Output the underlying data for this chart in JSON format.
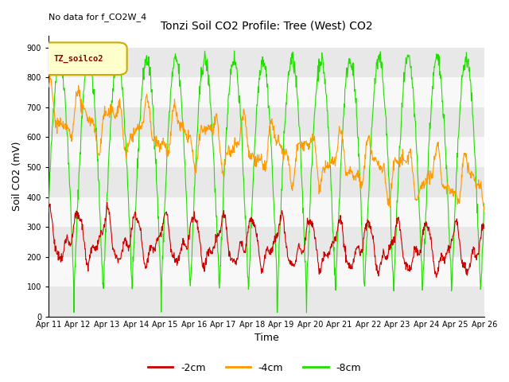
{
  "title": "Tonzi Soil CO2 Profile: Tree (West) CO2",
  "no_data_label": "No data for f_CO2W_4",
  "xlabel": "Time",
  "ylabel": "Soil CO2 (mV)",
  "legend_title": "TZ_soilco2",
  "legend_entries": [
    "-2cm",
    "-4cm",
    "-8cm"
  ],
  "line_colors": [
    "#cc0000",
    "#ff9900",
    "#22dd00"
  ],
  "ylim": [
    0,
    940
  ],
  "yticks": [
    0,
    100,
    200,
    300,
    400,
    500,
    600,
    700,
    800,
    900
  ],
  "fig_facecolor": "#ffffff",
  "plot_facecolor": "#ffffff",
  "band_colors": [
    "#e8e8e8",
    "#f8f8f8"
  ],
  "xtick_labels": [
    "Apr 11",
    "Apr 12",
    "Apr 13",
    "Apr 14",
    "Apr 15",
    "Apr 16",
    "Apr 17",
    "Apr 18",
    "Apr 19",
    "Apr 20",
    "Apr 21",
    "Apr 22",
    "Apr 23",
    "Apr 24",
    "Apr 25",
    "Apr 26"
  ],
  "legend_box_facecolor": "#ffffcc",
  "legend_box_edgecolor": "#ccaa00",
  "legend_text_color": "#880000",
  "title_fontsize": 10,
  "axis_fontsize": 9,
  "tick_fontsize": 7
}
